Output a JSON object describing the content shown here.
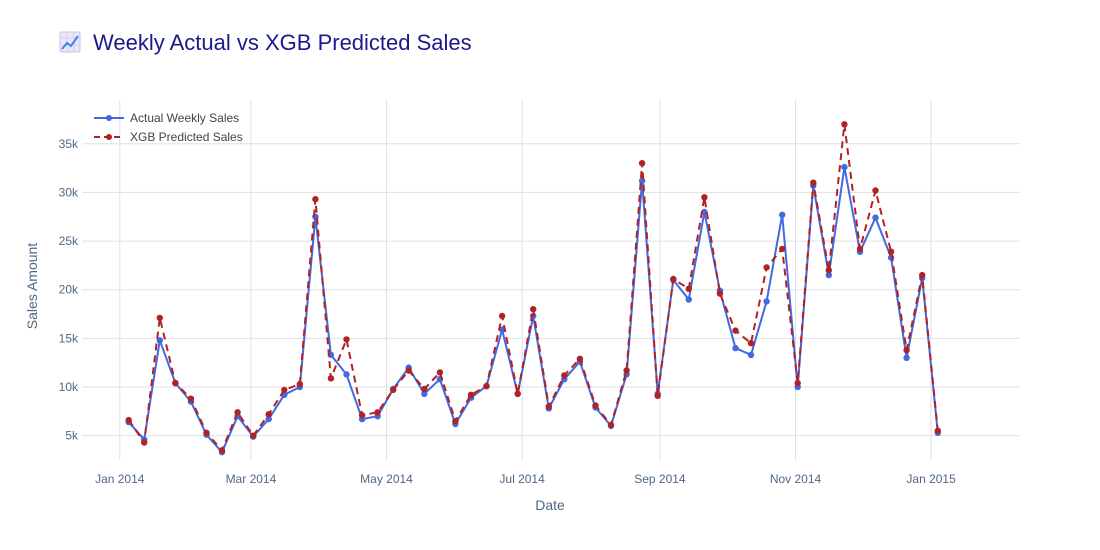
{
  "chart_data": {
    "type": "line",
    "title_icon": "chart-increasing-icon",
    "title": "Weekly Actual vs XGB Predicted Sales",
    "xlabel": "Date",
    "ylabel": "Sales Amount",
    "x_tick_labels": [
      "Jan 2014",
      "Mar 2014",
      "May 2014",
      "Jul 2014",
      "Sep 2014",
      "Nov 2014",
      "Jan 2015"
    ],
    "y_tick_labels": [
      "5k",
      "10k",
      "15k",
      "20k",
      "25k",
      "30k",
      "35k"
    ],
    "y_ticks": [
      5000,
      10000,
      15000,
      20000,
      25000,
      30000,
      35000
    ],
    "ylim": [
      2500,
      39500
    ],
    "grid": true,
    "legend_position": "top-left",
    "series": [
      {
        "name": "Actual Weekly Sales",
        "color": "#4169e1",
        "style": "solid",
        "values": [
          6400,
          4600,
          14800,
          10400,
          8500,
          5100,
          3300,
          7000,
          4900,
          6700,
          9200,
          10000,
          27500,
          13300,
          11300,
          6700,
          7000,
          9800,
          12000,
          9300,
          10800,
          6200,
          8900,
          10100,
          15900,
          9300,
          17300,
          7800,
          10800,
          12600,
          7900,
          6000,
          11300,
          31200,
          9300,
          21000,
          19000,
          28000,
          19900,
          14000,
          13300,
          18800,
          27700,
          10000,
          30700,
          21500,
          32600,
          23900,
          27400,
          23300,
          13000,
          21200,
          5300
        ]
      },
      {
        "name": "XGB Predicted Sales",
        "color": "#b22222",
        "style": "dash",
        "values": [
          6600,
          4300,
          17100,
          10400,
          8800,
          5300,
          3500,
          7400,
          5000,
          7200,
          9700,
          10300,
          29300,
          10900,
          14900,
          7100,
          7400,
          9700,
          11700,
          9800,
          11500,
          6500,
          9200,
          10100,
          17300,
          9300,
          18000,
          8000,
          11200,
          12900,
          8100,
          6100,
          11700,
          33000,
          9100,
          21100,
          20100,
          29500,
          19600,
          15800,
          14500,
          22300,
          24200,
          10400,
          31000,
          22000,
          37000,
          24200,
          30200,
          23900,
          13800,
          21500,
          5500
        ]
      }
    ]
  }
}
